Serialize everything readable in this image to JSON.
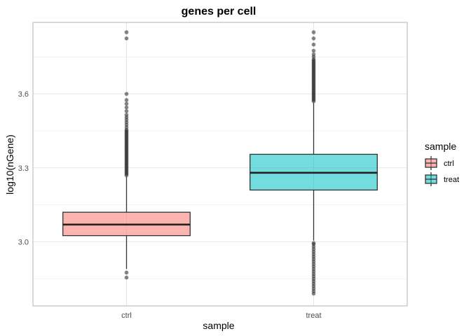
{
  "chart_data": {
    "type": "box",
    "title": "genes per cell",
    "xlabel": "sample",
    "ylabel": "log10(nGene)",
    "ylim": [
      2.74,
      3.89
    ],
    "yticks": [
      3.0,
      3.3,
      3.6
    ],
    "ytick_labels": [
      "3.0",
      "3.3",
      "3.6"
    ],
    "grid": true,
    "legend": {
      "title": "sample",
      "position": "right",
      "entries": [
        {
          "label": "ctrl",
          "color": "#F8766D"
        },
        {
          "label": "treat",
          "color": "#00BFC4"
        }
      ]
    },
    "categories": [
      "ctrl",
      "treat"
    ],
    "boxes": [
      {
        "category": "ctrl",
        "color": "#F8766D",
        "q1": 3.025,
        "median": 3.07,
        "q3": 3.12,
        "whisker_low": 2.89,
        "whisker_high": 3.265,
        "outliers": [
          2.855,
          2.875,
          3.27,
          3.275,
          3.28,
          3.285,
          3.29,
          3.295,
          3.3,
          3.305,
          3.31,
          3.315,
          3.32,
          3.325,
          3.33,
          3.335,
          3.34,
          3.345,
          3.35,
          3.355,
          3.36,
          3.365,
          3.37,
          3.375,
          3.38,
          3.385,
          3.39,
          3.395,
          3.4,
          3.405,
          3.41,
          3.415,
          3.42,
          3.425,
          3.43,
          3.435,
          3.44,
          3.445,
          3.45,
          3.455,
          3.465,
          3.475,
          3.485,
          3.495,
          3.505,
          3.515,
          3.53,
          3.545,
          3.56,
          3.575,
          3.6,
          3.825,
          3.85
        ]
      },
      {
        "category": "treat",
        "color": "#00BFC4",
        "q1": 3.21,
        "median": 3.28,
        "q3": 3.355,
        "whisker_low": 3.005,
        "whisker_high": 3.565,
        "outliers": [
          2.79,
          2.8,
          2.81,
          2.82,
          2.83,
          2.84,
          2.85,
          2.86,
          2.87,
          2.88,
          2.89,
          2.9,
          2.91,
          2.92,
          2.93,
          2.94,
          2.95,
          2.96,
          2.97,
          2.98,
          2.99,
          2.995,
          3.57,
          3.575,
          3.58,
          3.585,
          3.59,
          3.595,
          3.6,
          3.605,
          3.61,
          3.615,
          3.62,
          3.625,
          3.63,
          3.635,
          3.64,
          3.645,
          3.65,
          3.655,
          3.66,
          3.665,
          3.67,
          3.675,
          3.68,
          3.685,
          3.69,
          3.695,
          3.7,
          3.705,
          3.71,
          3.715,
          3.72,
          3.725,
          3.73,
          3.735,
          3.74,
          3.75,
          3.76,
          3.775,
          3.8,
          3.825,
          3.85
        ]
      }
    ]
  }
}
